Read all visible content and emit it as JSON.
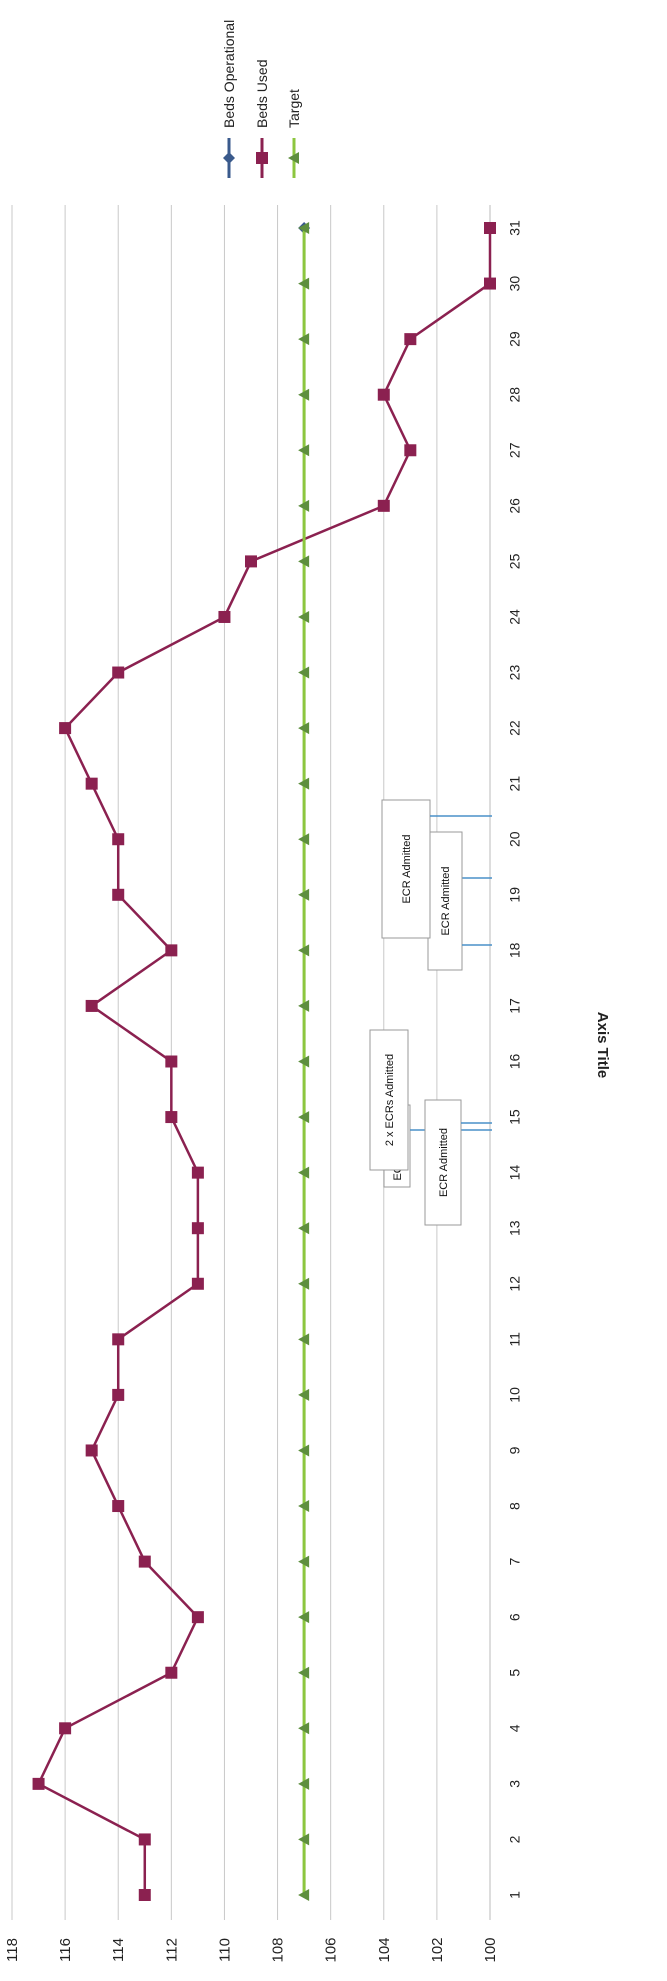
{
  "chart_data": {
    "type": "line",
    "ylabel": "Axis Title",
    "ylim": [
      100,
      118
    ],
    "y_ticks": [
      "100",
      "102",
      "104",
      "106",
      "108",
      "110",
      "112",
      "114",
      "116",
      "118"
    ],
    "x": [
      1,
      2,
      3,
      4,
      5,
      6,
      7,
      8,
      9,
      10,
      11,
      12,
      13,
      14,
      15,
      16,
      17,
      18,
      19,
      20,
      21,
      22,
      23,
      24,
      25,
      26,
      27,
      28,
      29,
      30,
      31
    ],
    "x_ticks": [
      "1",
      "2",
      "3",
      "4",
      "5",
      "6",
      "7",
      "8",
      "9",
      "10",
      "11",
      "12",
      "13",
      "14",
      "15",
      "16",
      "17",
      "18",
      "19",
      "20",
      "21",
      "22",
      "23",
      "24",
      "25",
      "26",
      "27",
      "28",
      "29",
      "30",
      "31"
    ],
    "grid": true,
    "legend_position": "top-right",
    "series": [
      {
        "name": "Beds Operational",
        "color": "#3a5a8c",
        "marker": "diamond",
        "values": [
          107,
          107,
          107,
          107,
          107,
          107,
          107,
          107,
          107,
          107,
          107,
          107,
          107,
          107,
          107,
          107,
          107,
          107,
          107,
          107,
          107,
          107,
          107,
          107,
          107,
          107,
          107,
          107,
          107,
          107,
          107
        ]
      },
      {
        "name": "Beds Used",
        "color": "#8b2150",
        "marker": "square",
        "values": [
          113,
          113,
          117,
          116,
          112,
          111,
          113,
          114,
          115,
          114,
          114,
          111,
          111,
          111,
          112,
          112,
          115,
          112,
          114,
          114,
          115,
          116,
          114,
          110,
          109,
          104,
          103,
          104,
          103,
          100,
          100
        ]
      },
      {
        "name": "Target",
        "color": "#8cc63f",
        "marker": "triangle",
        "values": [
          107,
          107,
          107,
          107,
          107,
          107,
          107,
          107,
          107,
          107,
          107,
          107,
          107,
          107,
          107,
          107,
          107,
          107,
          107,
          107,
          107,
          107,
          107,
          107,
          107,
          107,
          107,
          107,
          107,
          107,
          107
        ]
      }
    ],
    "annotations": [
      {
        "text": "ECR Admitted",
        "x": 3
      },
      {
        "text": "ECR Admitted",
        "x": 4
      },
      {
        "text": "2 x ECRs Admitted",
        "x": 8
      },
      {
        "text": "ECR Admitted",
        "x": 9
      },
      {
        "text": "ECR Admitted",
        "x": 10
      }
    ]
  }
}
